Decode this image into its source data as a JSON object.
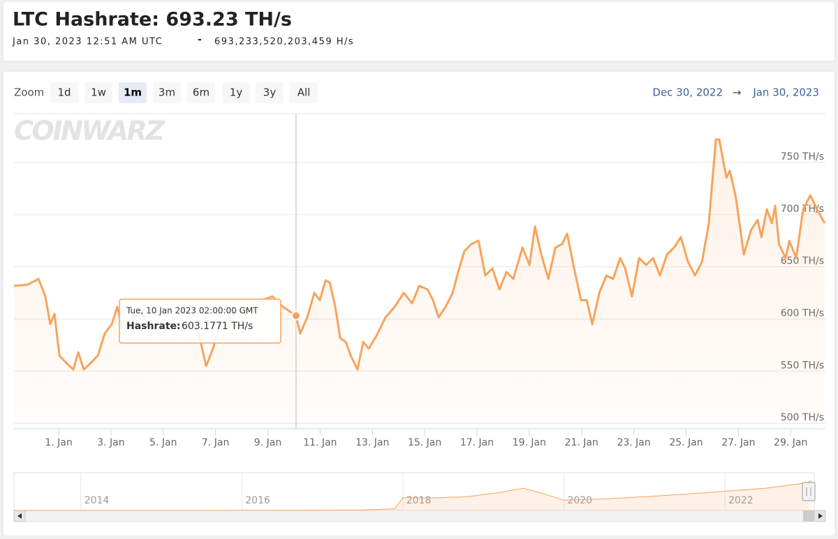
{
  "header": {
    "title": "LTC Hashrate: 693.23 TH/s",
    "date": "Jan 30, 2023 12:51 AM UTC",
    "separator": "-",
    "raw": "693,233,520,203,459 H/s"
  },
  "zoom": {
    "label": "Zoom",
    "buttons": [
      "1d",
      "1w",
      "1m",
      "3m",
      "6m",
      "1y",
      "3y",
      "All"
    ],
    "selected": 2
  },
  "range": {
    "from": "Dec 30, 2022",
    "arrow": "→",
    "to": "Jan 30, 2023"
  },
  "chart_data": {
    "type": "line",
    "watermark": "COINWARZ",
    "color": "#f7a35c",
    "grid": true,
    "x": [
      -0.71,
      -0.18,
      0.23,
      0.49,
      0.68,
      0.84,
      1.03,
      1.29,
      1.56,
      1.75,
      1.96,
      2.23,
      2.5,
      2.76,
      3.03,
      3.24,
      3.43,
      3.7,
      4.1,
      4.5,
      4.9,
      5.3,
      5.7,
      6.1,
      6.37,
      6.64,
      6.9,
      7.17,
      7.57,
      7.97,
      8.37,
      8.77,
      9.18,
      9.58,
      10.08,
      10.24,
      10.51,
      10.78,
      10.99,
      11.21,
      11.37,
      11.58,
      11.77,
      11.98,
      12.17,
      12.43,
      12.65,
      12.86,
      13.18,
      13.5,
      13.85,
      14.2,
      14.52,
      14.79,
      15.11,
      15.32,
      15.53,
      15.8,
      16.07,
      16.28,
      16.52,
      16.79,
      17.06,
      17.32,
      17.59,
      17.86,
      18.13,
      18.39,
      18.74,
      19.01,
      19.22,
      19.46,
      19.73,
      20.0,
      20.26,
      20.45,
      20.72,
      20.98,
      21.2,
      21.41,
      21.68,
      21.95,
      22.21,
      22.48,
      22.67,
      22.93,
      23.2,
      23.47,
      23.74,
      24.0,
      24.27,
      24.54,
      24.8,
      25.07,
      25.34,
      25.61,
      25.87,
      26.14,
      26.27,
      26.54,
      26.67,
      26.89,
      27.21,
      27.48,
      27.74,
      27.88,
      28.09,
      28.28,
      28.41,
      28.55,
      28.81,
      28.95,
      29.21,
      29.48,
      29.75,
      30.01,
      30.3
    ],
    "values": [
      631.7,
      633,
      638.4,
      621.7,
      595,
      605,
      564.8,
      558,
      551.5,
      568,
      551.5,
      558,
      565,
      586,
      595,
      611.6,
      591.6,
      598.3,
      608,
      592,
      585,
      595,
      588,
      598,
      585,
      554.8,
      571.5,
      595,
      601.6,
      611.6,
      608,
      618,
      621.7,
      611.6,
      603.1771,
      586,
      601.6,
      625,
      618,
      637,
      635,
      611.6,
      581.6,
      578,
      565,
      551.5,
      578,
      571.5,
      585,
      601.6,
      611.6,
      625,
      615,
      631.7,
      628.3,
      618,
      601.6,
      611.6,
      625,
      645,
      665,
      671.8,
      675,
      641.7,
      648.4,
      628.3,
      645,
      638.4,
      668.5,
      651.7,
      688.5,
      661.8,
      638.4,
      668.5,
      671.8,
      681.8,
      648.4,
      618,
      618,
      595,
      625,
      641.7,
      638.4,
      658.4,
      648.4,
      621.7,
      658.4,
      651.7,
      658.4,
      641.7,
      661.8,
      668.5,
      678.5,
      655,
      641.7,
      655,
      691.8,
      772,
      772,
      735.3,
      742,
      718.6,
      661.8,
      685,
      695,
      678.5,
      705.2,
      691.8,
      708.6,
      671.8,
      658.4,
      675,
      658.4,
      705.2,
      718.6,
      705.2,
      691.8
    ],
    "xlim": [
      -0.71,
      30.33
    ],
    "ylim": [
      494.7,
      796.8
    ],
    "xticks": [
      {
        "value": 1,
        "label": "1. Jan"
      },
      {
        "value": 3,
        "label": "3. Jan"
      },
      {
        "value": 5,
        "label": "5. Jan"
      },
      {
        "value": 7,
        "label": "7. Jan"
      },
      {
        "value": 9,
        "label": "9. Jan"
      },
      {
        "value": 11,
        "label": "11. Jan"
      },
      {
        "value": 13,
        "label": "13. Jan"
      },
      {
        "value": 15,
        "label": "15. Jan"
      },
      {
        "value": 17,
        "label": "17. Jan"
      },
      {
        "value": 19,
        "label": "19. Jan"
      },
      {
        "value": 21,
        "label": "21. Jan"
      },
      {
        "value": 23,
        "label": "23. Jan"
      },
      {
        "value": 25,
        "label": "25. Jan"
      },
      {
        "value": 27,
        "label": "27. Jan"
      },
      {
        "value": 29,
        "label": "29. Jan"
      }
    ],
    "yticks": [
      {
        "value": 500,
        "label": "500 TH/s"
      },
      {
        "value": 550,
        "label": "550 TH/s"
      },
      {
        "value": 600,
        "label": "600 TH/s"
      },
      {
        "value": 650,
        "label": "650 TH/s"
      },
      {
        "value": 700,
        "label": "700 TH/s"
      },
      {
        "value": 750,
        "label": "750 TH/s"
      }
    ],
    "tooltip": {
      "index": 34,
      "date": "Tue, 10 Jan 2023 02:00:00 GMT",
      "name": "Hashrate:",
      "value_label": "603.1771 TH/s"
    },
    "navigator": {
      "x": [
        2013.17,
        2015,
        2016,
        2017,
        2017.5,
        2017.9,
        2018.0,
        2018.3,
        2018.8,
        2019.2,
        2019.5,
        2019.7,
        2020.0,
        2020.5,
        2021.0,
        2021.5,
        2022.0,
        2022.5,
        2023.0,
        2023.08
      ],
      "values": [
        0.1,
        0.5,
        1,
        3,
        10,
        40,
        300,
        290,
        320,
        420,
        520,
        420,
        240,
        270,
        320,
        380,
        450,
        520,
        640,
        693
      ],
      "xlim": [
        2013.17,
        2023.11
      ],
      "ylim": [
        0,
        850
      ],
      "xticks": [
        2014,
        2016,
        2018,
        2020,
        2022
      ]
    }
  }
}
